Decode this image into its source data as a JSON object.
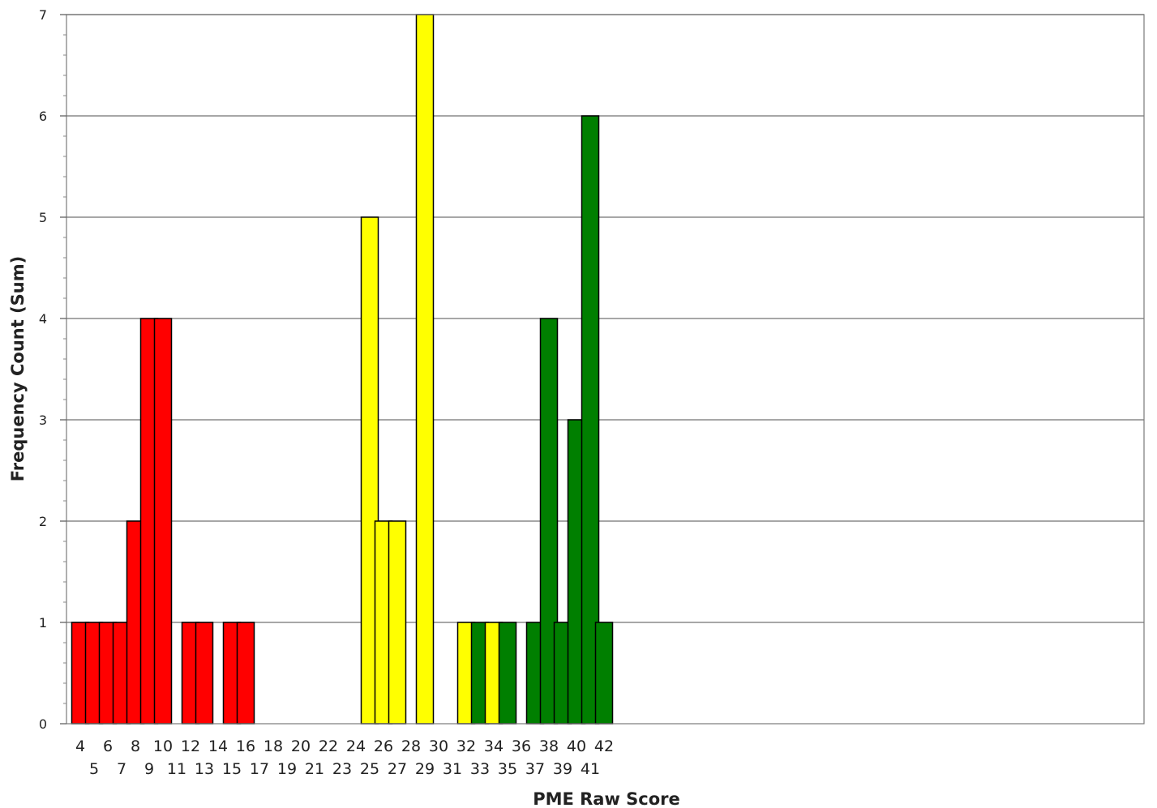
{
  "chart_data": {
    "type": "bar",
    "title": "",
    "xlabel": "PME Raw Score",
    "ylabel": "Frequency Count (Sum)",
    "ylim": [
      0,
      7
    ],
    "yticks": [
      0,
      1,
      2,
      3,
      4,
      5,
      6,
      7
    ],
    "grid": "horizontal",
    "legend": "none",
    "categories": [
      "4",
      "5",
      "6",
      "7",
      "8",
      "9",
      "10",
      "11",
      "12",
      "13",
      "14",
      "15",
      "16",
      "17",
      "18",
      "19",
      "20",
      "21",
      "22",
      "23",
      "24",
      "25",
      "26",
      "27",
      "28",
      "29",
      "30",
      "31",
      "32",
      "33",
      "34",
      "35",
      "36",
      "37",
      "38",
      "39",
      "40",
      "41",
      "42"
    ],
    "values": [
      1,
      1,
      1,
      1,
      2,
      4,
      4,
      0,
      1,
      1,
      0,
      1,
      1,
      0,
      0,
      0,
      0,
      0,
      0,
      0,
      0,
      5,
      2,
      2,
      0,
      7,
      0,
      0,
      1,
      1,
      1,
      1,
      0,
      1,
      4,
      1,
      3,
      6,
      1
    ],
    "bar_colors": [
      "red",
      "red",
      "red",
      "red",
      "red",
      "red",
      "red",
      "none",
      "red",
      "red",
      "none",
      "red",
      "red",
      "none",
      "none",
      "none",
      "none",
      "none",
      "none",
      "none",
      "none",
      "yellow",
      "yellow",
      "yellow",
      "none",
      "yellow",
      "none",
      "none",
      "yellow",
      "green",
      "yellow",
      "green",
      "none",
      "green",
      "green",
      "green",
      "green",
      "green",
      "green"
    ],
    "colors": {
      "red": "#ff0000",
      "yellow": "#ffff00",
      "green": "#007f00"
    }
  }
}
